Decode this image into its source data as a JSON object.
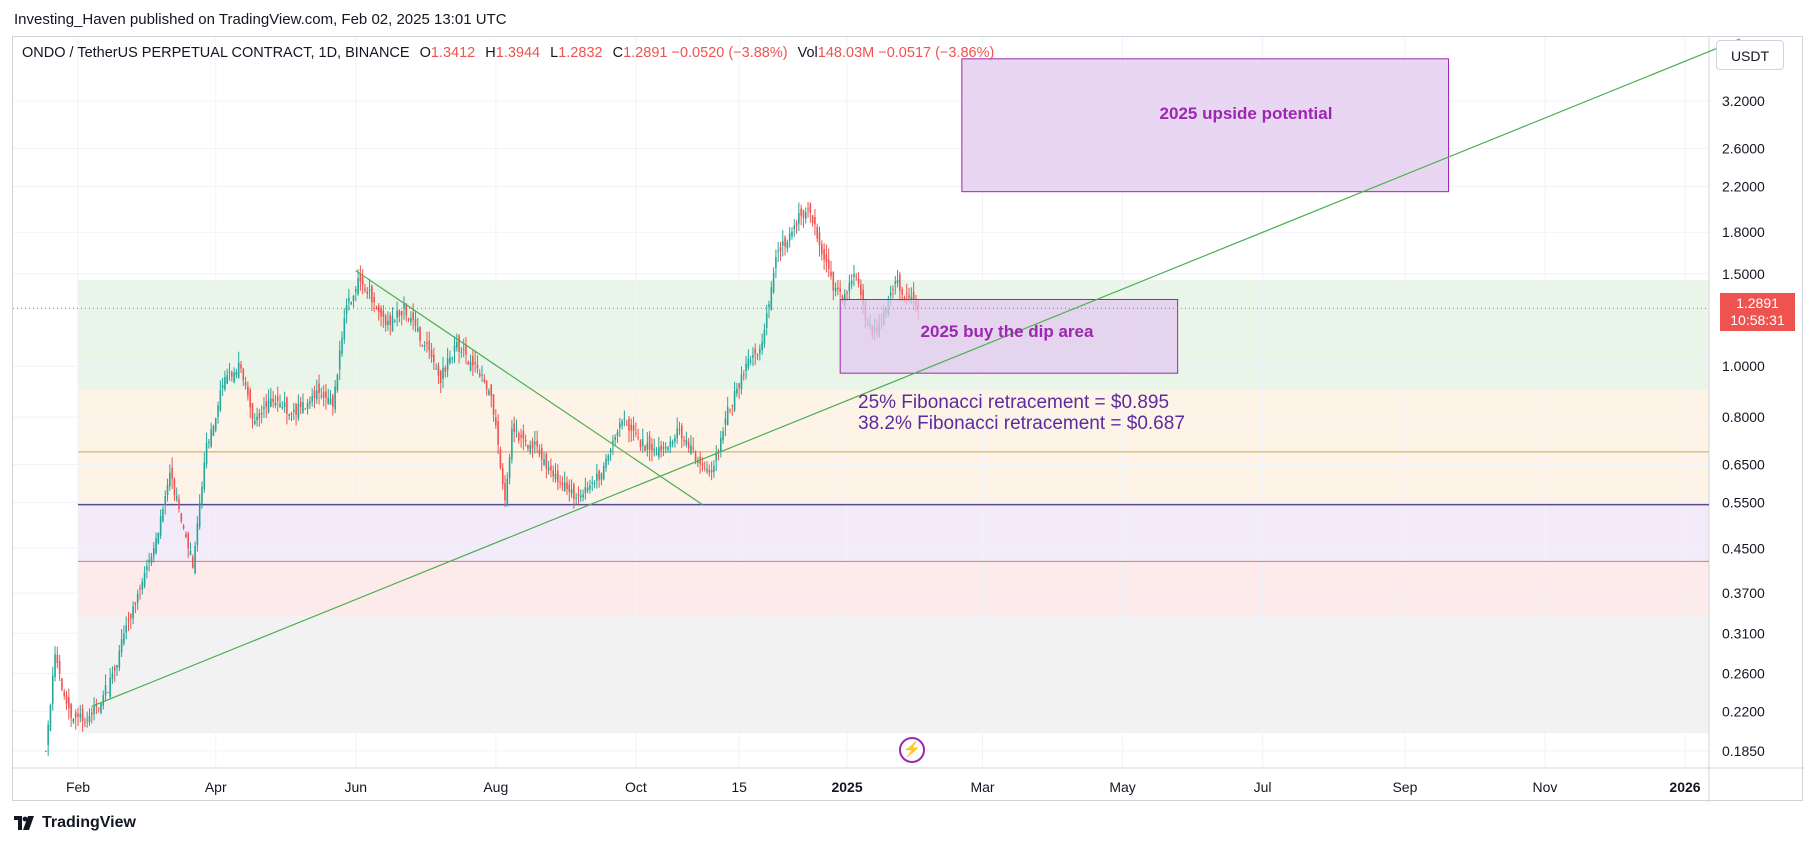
{
  "header": {
    "publisher": "Investing_Haven published on TradingView.com, Feb 02, 2025 13:01 UTC"
  },
  "legend": {
    "symbol": "ONDO / TetherUS PERPETUAL CONTRACT, 1D, BINANCE",
    "open_label": "O",
    "open": "1.3412",
    "high_label": "H",
    "high": "1.3944",
    "low_label": "L",
    "low": "1.2832",
    "close_label": "C",
    "close": "1.2891",
    "change": "−0.0520 (−3.88%)",
    "vol_label": "Vol",
    "vol": "148.03M",
    "vol_change": "−0.0517 (−3.86%)"
  },
  "currency": "USDT",
  "price_tag": {
    "price": "1.2891",
    "countdown": "10:58:31"
  },
  "annotations": {
    "upside": "2025 upside potential",
    "dip": "2025 buy the dip area",
    "fib_25": "25% Fibonacci retracement = $0.895",
    "fib_382": "38.2% Fibonacci retracement = $0.687"
  },
  "footer": {
    "brand": "TradingView"
  },
  "colors": {
    "up": "#26a69a",
    "down": "#ef5350",
    "box_fill": "#e1c8ee",
    "box_stroke": "#9c27b0",
    "trend": "#4caf50",
    "annotation": "#9c27b0"
  },
  "chart_data": {
    "type": "candlestick",
    "title": "ONDO / TetherUS PERPETUAL CONTRACT, 1D, BINANCE",
    "y_scale": "log",
    "ylim": [
      0.17,
      4.0
    ],
    "y_ticks": [
      "3.2000",
      "2.6000",
      "2.2000",
      "1.8000",
      "1.5000",
      "1.0000",
      "0.8000",
      "0.6500",
      "0.5500",
      "0.4500",
      "0.3700",
      "0.3100",
      "0.2600",
      "0.2200",
      "0.1850"
    ],
    "x_ticks": [
      "Feb",
      "Apr",
      "Jun",
      "Aug",
      "Oct",
      "15",
      "2025",
      "Mar",
      "May",
      "Jul",
      "Sep",
      "Nov",
      "2026"
    ],
    "x_range": [
      "2024-01-18",
      "2026-01-30"
    ],
    "last_price": 1.2891,
    "price_path": [
      {
        "date": "2024-01-18",
        "price": 0.19
      },
      {
        "date": "2024-01-22",
        "price": 0.28
      },
      {
        "date": "2024-01-28",
        "price": 0.22
      },
      {
        "date": "2024-02-05",
        "price": 0.21
      },
      {
        "date": "2024-02-15",
        "price": 0.25
      },
      {
        "date": "2024-02-25",
        "price": 0.35
      },
      {
        "date": "2024-03-05",
        "price": 0.45
      },
      {
        "date": "2024-03-12",
        "price": 0.62
      },
      {
        "date": "2024-03-18",
        "price": 0.5
      },
      {
        "date": "2024-03-22",
        "price": 0.42
      },
      {
        "date": "2024-03-28",
        "price": 0.7
      },
      {
        "date": "2024-04-05",
        "price": 0.95
      },
      {
        "date": "2024-04-12",
        "price": 1.0
      },
      {
        "date": "2024-04-18",
        "price": 0.78
      },
      {
        "date": "2024-04-25",
        "price": 0.85
      },
      {
        "date": "2024-05-05",
        "price": 0.82
      },
      {
        "date": "2024-05-15",
        "price": 0.88
      },
      {
        "date": "2024-05-22",
        "price": 0.85
      },
      {
        "date": "2024-05-28",
        "price": 1.3
      },
      {
        "date": "2024-06-02",
        "price": 1.45
      },
      {
        "date": "2024-06-08",
        "price": 1.35
      },
      {
        "date": "2024-06-15",
        "price": 1.2
      },
      {
        "date": "2024-06-22",
        "price": 1.3
      },
      {
        "date": "2024-07-01",
        "price": 1.1
      },
      {
        "date": "2024-07-08",
        "price": 0.95
      },
      {
        "date": "2024-07-15",
        "price": 1.1
      },
      {
        "date": "2024-07-22",
        "price": 1.0
      },
      {
        "date": "2024-07-30",
        "price": 0.9
      },
      {
        "date": "2024-08-05",
        "price": 0.55
      },
      {
        "date": "2024-08-08",
        "price": 0.75
      },
      {
        "date": "2024-08-18",
        "price": 0.7
      },
      {
        "date": "2024-08-28",
        "price": 0.6
      },
      {
        "date": "2024-09-06",
        "price": 0.56
      },
      {
        "date": "2024-09-15",
        "price": 0.62
      },
      {
        "date": "2024-09-25",
        "price": 0.8
      },
      {
        "date": "2024-10-02",
        "price": 0.72
      },
      {
        "date": "2024-10-10",
        "price": 0.68
      },
      {
        "date": "2024-10-20",
        "price": 0.75
      },
      {
        "date": "2024-10-28",
        "price": 0.66
      },
      {
        "date": "2024-11-03",
        "price": 0.62
      },
      {
        "date": "2024-11-10",
        "price": 0.82
      },
      {
        "date": "2024-11-18",
        "price": 1.0
      },
      {
        "date": "2024-11-25",
        "price": 1.1
      },
      {
        "date": "2024-12-01",
        "price": 1.6
      },
      {
        "date": "2024-12-06",
        "price": 1.75
      },
      {
        "date": "2024-12-12",
        "price": 1.95
      },
      {
        "date": "2024-12-16",
        "price": 2.0
      },
      {
        "date": "2024-12-20",
        "price": 1.7
      },
      {
        "date": "2024-12-25",
        "price": 1.45
      },
      {
        "date": "2024-12-30",
        "price": 1.35
      },
      {
        "date": "2025-01-05",
        "price": 1.5
      },
      {
        "date": "2025-01-10",
        "price": 1.2
      },
      {
        "date": "2025-01-14",
        "price": 1.15
      },
      {
        "date": "2025-01-18",
        "price": 1.3
      },
      {
        "date": "2025-01-22",
        "price": 1.45
      },
      {
        "date": "2025-01-27",
        "price": 1.35
      },
      {
        "date": "2025-02-01",
        "price": 1.2891
      }
    ],
    "shapes": [
      {
        "kind": "rectangle",
        "label": "2025 upside potential",
        "from": "2025-02-20",
        "to": "2025-09-20",
        "low": 2.15,
        "high": 3.85
      },
      {
        "kind": "rectangle",
        "label": "2025 buy the dip area",
        "from": "2024-12-29",
        "to": "2025-05-25",
        "low": 0.97,
        "high": 1.34
      },
      {
        "kind": "trendline",
        "from": [
          "2024-02-07",
          0.225
        ],
        "to": [
          "2026-01-25",
          4.2
        ]
      },
      {
        "kind": "trendline",
        "from": [
          "2024-06-01",
          1.52
        ],
        "to": [
          "2024-10-30",
          0.545
        ]
      },
      {
        "kind": "hline",
        "price": 0.545
      },
      {
        "kind": "hline",
        "price": 0.687
      },
      {
        "kind": "hline",
        "price": 0.425
      }
    ],
    "fib_zones": [
      {
        "low": 0.9,
        "high": 1.46,
        "color": "#e9f5e9"
      },
      {
        "low": 0.545,
        "high": 0.9,
        "color": "#fdf3e6"
      },
      {
        "low": 0.425,
        "high": 0.545,
        "color": "#f3eafa"
      },
      {
        "low": 0.335,
        "high": 0.425,
        "color": "#fdeaea"
      },
      {
        "low": 0.2,
        "high": 0.335,
        "color": "#f2f2f2"
      }
    ]
  }
}
